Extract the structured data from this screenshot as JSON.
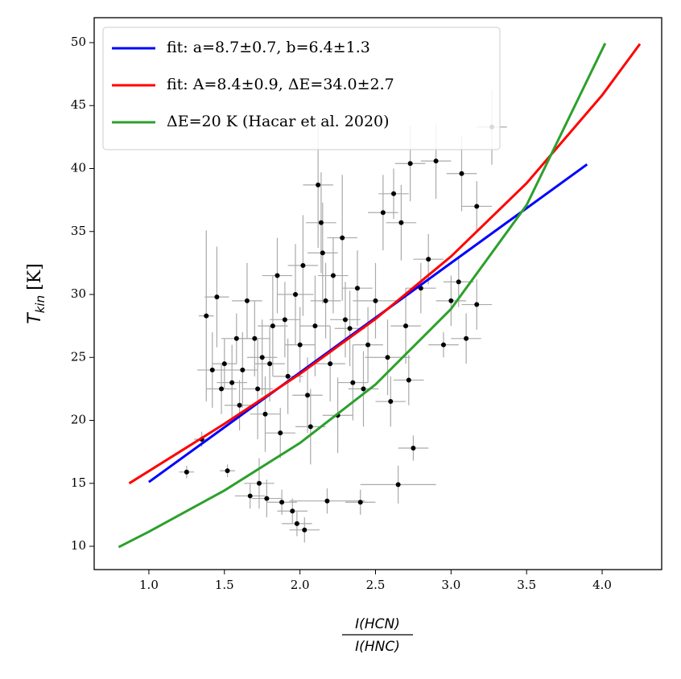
{
  "chart_data": {
    "type": "scatter",
    "ylabel": [
      "T",
      "kin",
      "[K]"
    ],
    "xlabel": {
      "numerator": "I(HCN)",
      "denominator": "I(HNC)"
    },
    "xlim": [
      0.638,
      4.394
    ],
    "ylim": [
      8.15,
      51.98
    ],
    "xticks": [
      {
        "value": 1.0,
        "label": "1.0"
      },
      {
        "value": 1.5,
        "label": "1.5"
      },
      {
        "value": 2.0,
        "label": "2.0"
      },
      {
        "value": 2.5,
        "label": "2.5"
      },
      {
        "value": 3.0,
        "label": "3.0"
      },
      {
        "value": 3.5,
        "label": "3.5"
      },
      {
        "value": 4.0,
        "label": "4.0"
      }
    ],
    "yticks": [
      10,
      15,
      20,
      25,
      30,
      35,
      40,
      45,
      50
    ],
    "legend": "upper left",
    "points": {
      "color": "#000000",
      "errcolor": "#aaaaaa",
      "x": [
        1.25,
        1.35,
        1.38,
        1.42,
        1.45,
        1.48,
        1.5,
        1.52,
        1.55,
        1.58,
        1.6,
        1.62,
        1.65,
        1.67,
        1.7,
        1.72,
        1.73,
        1.75,
        1.77,
        1.78,
        1.8,
        1.82,
        1.85,
        1.87,
        1.88,
        1.9,
        1.92,
        1.95,
        1.97,
        1.98,
        2.0,
        2.02,
        2.03,
        2.05,
        2.07,
        2.1,
        2.12,
        2.14,
        2.15,
        2.17,
        2.18,
        2.2,
        2.22,
        2.25,
        2.28,
        2.3,
        2.33,
        2.35,
        2.38,
        2.4,
        2.42,
        2.45,
        2.5,
        2.55,
        2.58,
        2.6,
        2.62,
        2.65,
        2.67,
        2.7,
        2.72,
        2.73,
        2.75,
        2.8,
        2.85,
        2.9,
        2.95,
        3.0,
        3.05,
        3.07,
        3.1,
        3.17,
        3.17,
        3.27
      ],
      "values": [
        15.9,
        18.5,
        28.3,
        24,
        29.8,
        22.5,
        24.5,
        16,
        23,
        26.5,
        21.2,
        24,
        29.5,
        14,
        26.5,
        22.5,
        15,
        25,
        20.5,
        13.8,
        24.5,
        27.5,
        31.5,
        19,
        13.5,
        28,
        23.5,
        12.8,
        30,
        11.8,
        26,
        32.3,
        11.3,
        22,
        19.5,
        27.5,
        38.7,
        35.7,
        33.3,
        29.5,
        13.6,
        24.5,
        31.5,
        20.4,
        34.5,
        28,
        27.3,
        23,
        30.5,
        13.5,
        22.5,
        26,
        29.5,
        36.5,
        25,
        21.5,
        38,
        14.9,
        35.7,
        27.5,
        23.2,
        40.4,
        17.8,
        30.5,
        32.8,
        40.6,
        26,
        29.5,
        31,
        39.6,
        26.5,
        37,
        29.2,
        43.3
      ],
      "xerr": [
        0.05,
        0.05,
        0.05,
        0.1,
        0.08,
        0.1,
        0.08,
        0.05,
        0.1,
        0.1,
        0.1,
        0.1,
        0.1,
        0.1,
        0.1,
        0.1,
        0.1,
        0.1,
        0.1,
        0.1,
        0.1,
        0.1,
        0.1,
        0.1,
        0.1,
        0.1,
        0.1,
        0.1,
        0.12,
        0.1,
        0.1,
        0.1,
        0.1,
        0.1,
        0.1,
        0.1,
        0.1,
        0.1,
        0.1,
        0.1,
        0.25,
        0.1,
        0.1,
        0.1,
        0.1,
        0.1,
        0.1,
        0.1,
        0.1,
        0.1,
        0.1,
        0.1,
        0.15,
        0.1,
        0.15,
        0.1,
        0.1,
        0.25,
        0.1,
        0.1,
        0.1,
        0.1,
        0.1,
        0.1,
        0.1,
        0.1,
        0.1,
        0.1,
        0.1,
        0.1,
        0.1,
        0.1,
        0.1,
        0.1
      ],
      "yerr": [
        0.5,
        0.6,
        6.8,
        3,
        4,
        2,
        2,
        0.5,
        3,
        2,
        2,
        3,
        3,
        1,
        3,
        4,
        2,
        3,
        3,
        1.5,
        3,
        4,
        3,
        2,
        1,
        3,
        3,
        1,
        4,
        1,
        3,
        4,
        1,
        3,
        3,
        4,
        5,
        4,
        4,
        3,
        1,
        3,
        3,
        3,
        5,
        3,
        3,
        3,
        3,
        1,
        3,
        3,
        3,
        3,
        3,
        2,
        2,
        1.5,
        3,
        3,
        2,
        3,
        1,
        2,
        2,
        3,
        1,
        2,
        2,
        3,
        2,
        2,
        2,
        3
      ]
    },
    "series": [
      {
        "name": "fit: a=8.7±0.7,  b=6.4±1.3",
        "color": "#0000ff",
        "x": [
          1.0,
          1.5,
          2.0,
          2.5,
          3.0,
          3.5,
          3.9
        ],
        "values": [
          15.1,
          19.45,
          23.8,
          28.15,
          32.5,
          36.85,
          40.33
        ]
      },
      {
        "name": "fit: A=8.4±0.9, ΔE=34.0±2.7",
        "color": "#ff0000",
        "x": [
          0.87,
          1.25,
          1.5,
          2.0,
          2.5,
          3.0,
          3.5,
          4.0,
          4.25
        ],
        "values": [
          15.0,
          17.85,
          19.73,
          23.69,
          28.05,
          33.02,
          38.84,
          45.82,
          49.9
        ]
      },
      {
        "name": "ΔE=20 K (Hacar et al. 2020)",
        "color": "#2ca02c",
        "x": [
          0.8,
          1.0,
          1.5,
          2.0,
          2.5,
          3.0,
          3.5,
          4.02
        ],
        "values": [
          9.93,
          11.16,
          14.43,
          18.2,
          22.85,
          28.85,
          37.1,
          49.95
        ]
      }
    ]
  }
}
